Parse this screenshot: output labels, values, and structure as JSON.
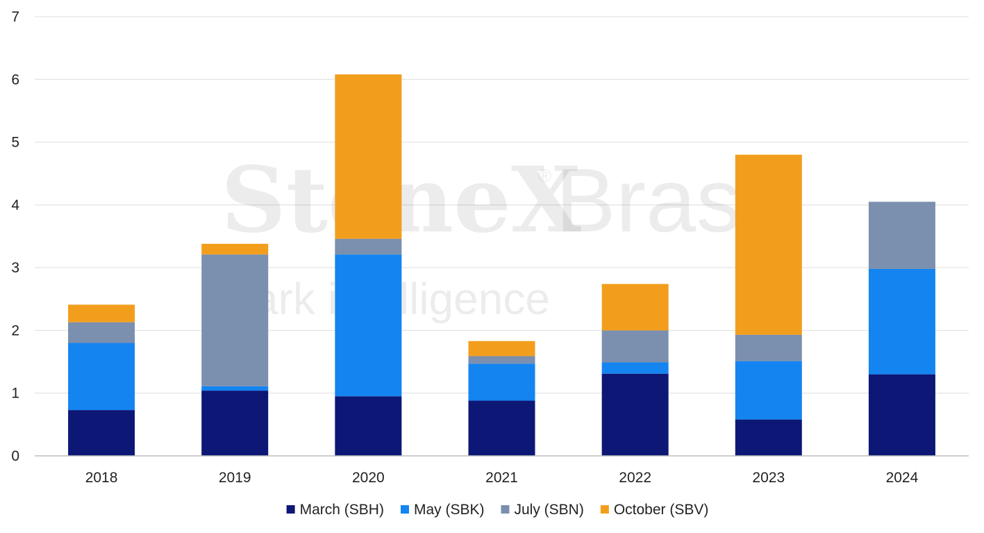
{
  "watermark": {
    "brand": "StoneX",
    "brand_suffix": "Bras",
    "registered": "®",
    "tagline": "ark  intelligence"
  },
  "chart_data": {
    "type": "bar",
    "stacked": true,
    "categories": [
      "2018",
      "2019",
      "2020",
      "2021",
      "2022",
      "2023",
      "2024"
    ],
    "series": [
      {
        "name": "March (SBH)",
        "color": "#0d1775",
        "values": [
          0.73,
          1.04,
          0.95,
          0.88,
          1.31,
          0.58,
          1.3
        ]
      },
      {
        "name": "May (SBK)",
        "color": "#1484f0",
        "values": [
          1.07,
          0.07,
          2.26,
          0.59,
          0.18,
          0.93,
          1.68
        ]
      },
      {
        "name": "July (SBN)",
        "color": "#7b8fae",
        "values": [
          0.33,
          2.1,
          0.25,
          0.12,
          0.51,
          0.42,
          1.07
        ]
      },
      {
        "name": "October (SBV)",
        "color": "#f29e1c",
        "values": [
          0.28,
          0.17,
          2.62,
          0.24,
          0.74,
          2.87,
          0.0
        ]
      }
    ],
    "ylim": [
      0,
      7
    ],
    "yticks": [
      "0",
      "1",
      "2",
      "3",
      "4",
      "5",
      "6",
      "7"
    ],
    "grid": true,
    "legend_position": "bottom",
    "title": "",
    "xlabel": "",
    "ylabel": ""
  }
}
